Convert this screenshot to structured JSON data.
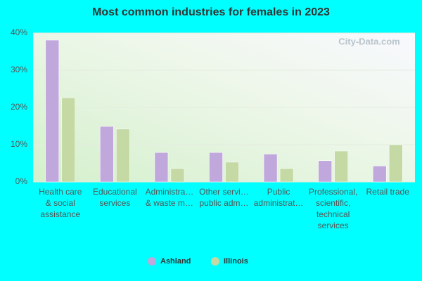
{
  "chart_data": {
    "type": "bar",
    "title": "Most common industries for females in 2023",
    "watermark": "City-Data.com",
    "categories": [
      "Health care & social assistance",
      "Educational services",
      "Administra… & waste m…",
      "Other servi… public adm…",
      "Public administrat…",
      "Professional, scientific, technical services",
      "Retail trade"
    ],
    "series": [
      {
        "name": "Ashland",
        "color": "#c0a8dc",
        "values": [
          38.1,
          14.9,
          7.9,
          7.9,
          7.5,
          5.7,
          4.3
        ]
      },
      {
        "name": "Illinois",
        "color": "#c4d9a4",
        "values": [
          22.6,
          14.2,
          3.6,
          5.3,
          3.6,
          8.3,
          10.0
        ]
      }
    ],
    "ylim": [
      0,
      40
    ],
    "yticks": [
      {
        "value": 0,
        "label": "0%"
      },
      {
        "value": 10,
        "label": "10%"
      },
      {
        "value": 20,
        "label": "20%"
      },
      {
        "value": 30,
        "label": "30%"
      },
      {
        "value": 40,
        "label": "40%"
      }
    ],
    "grid": true,
    "legend": "bottom"
  }
}
